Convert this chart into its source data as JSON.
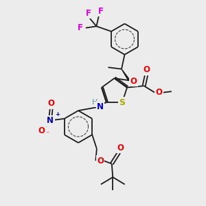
{
  "bg_color": "#ececec",
  "bond_color": "#1a1a1a",
  "bond_lw": 1.3,
  "atom_colors": {
    "F": "#dd00dd",
    "O": "#ee0000",
    "N": "#0000bb",
    "S": "#aaaa00",
    "H": "#559999",
    "C": "#1a1a1a"
  },
  "figsize": [
    3.0,
    3.0
  ],
  "dpi": 100,
  "xlim": [
    0,
    10
  ],
  "ylim": [
    0,
    10
  ]
}
